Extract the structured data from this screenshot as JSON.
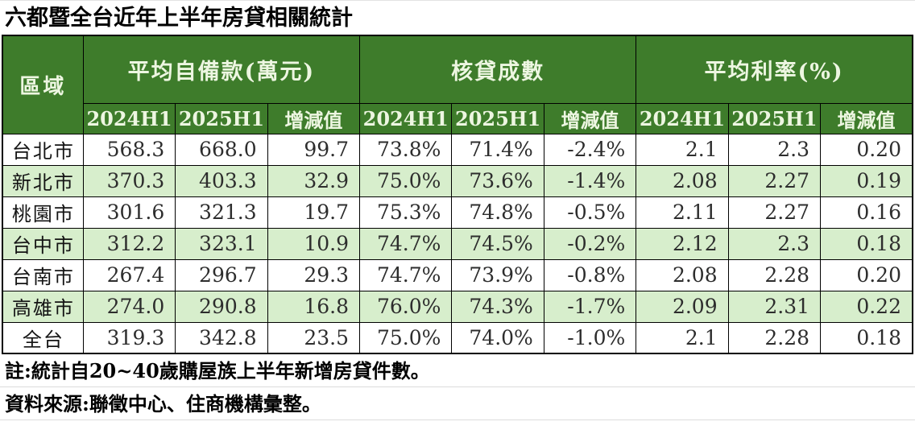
{
  "title": "六都暨全台近年上半年房貸相關統計",
  "table": {
    "region_header": "區域",
    "groups": [
      {
        "label": "平均自備款(萬元)"
      },
      {
        "label": "核貸成數"
      },
      {
        "label": "平均利率(%)"
      }
    ],
    "sub_headers": [
      "2024H1",
      "2025H1",
      "增減值"
    ],
    "rows": [
      {
        "region": "台北市",
        "values": [
          "568.3",
          "668.0",
          "99.7",
          "73.8%",
          "71.4%",
          "-2.4%",
          "2.1",
          "2.3",
          "0.20"
        ]
      },
      {
        "region": "新北市",
        "values": [
          "370.3",
          "403.3",
          "32.9",
          "75.0%",
          "73.6%",
          "-1.4%",
          "2.08",
          "2.27",
          "0.19"
        ]
      },
      {
        "region": "桃園市",
        "values": [
          "301.6",
          "321.3",
          "19.7",
          "75.3%",
          "74.8%",
          "-0.5%",
          "2.11",
          "2.27",
          "0.16"
        ]
      },
      {
        "region": "台中市",
        "values": [
          "312.2",
          "323.1",
          "10.9",
          "74.7%",
          "74.5%",
          "-0.2%",
          "2.12",
          "2.3",
          "0.18"
        ]
      },
      {
        "region": "台南市",
        "values": [
          "267.4",
          "296.7",
          "29.3",
          "74.7%",
          "73.9%",
          "-0.8%",
          "2.08",
          "2.28",
          "0.20"
        ]
      },
      {
        "region": "高雄市",
        "values": [
          "274.0",
          "290.8",
          "16.8",
          "76.0%",
          "74.3%",
          "-1.7%",
          "2.09",
          "2.31",
          "0.22"
        ]
      },
      {
        "region": "全台",
        "values": [
          "319.3",
          "342.8",
          "23.5",
          "75.0%",
          "74.0%",
          "-1.0%",
          "2.1",
          "2.28",
          "0.18"
        ]
      }
    ]
  },
  "notes": [
    "註:統計自20~40歲購屋族上半年新增房貸件數。",
    "資料來源:聯徵中心、住商機構彙整。"
  ],
  "colors": {
    "header_bg": "#3e7c2b",
    "header_text": "#edf6e1",
    "row_alt_bg": "#d7eecc",
    "row_bg": "#ffffff",
    "border": "#000000",
    "note_divider": "#dcdcdc"
  },
  "chart_data": {
    "type": "table",
    "title": "六都暨全台近年上半年房貸相關統計",
    "categories": [
      "台北市",
      "新北市",
      "桃園市",
      "台中市",
      "台南市",
      "高雄市",
      "全台"
    ],
    "series": [
      {
        "name": "平均自備款(萬元) 2024H1",
        "values": [
          568.3,
          370.3,
          301.6,
          312.2,
          267.4,
          274.0,
          319.3
        ]
      },
      {
        "name": "平均自備款(萬元) 2025H1",
        "values": [
          668.0,
          403.3,
          321.3,
          323.1,
          296.7,
          290.8,
          342.8
        ]
      },
      {
        "name": "平均自備款(萬元) 增減值",
        "values": [
          99.7,
          32.9,
          19.7,
          10.9,
          29.3,
          16.8,
          23.5
        ]
      },
      {
        "name": "核貸成數 2024H1 (%)",
        "values": [
          73.8,
          75.0,
          75.3,
          74.7,
          74.7,
          76.0,
          75.0
        ]
      },
      {
        "name": "核貸成數 2025H1 (%)",
        "values": [
          71.4,
          73.6,
          74.8,
          74.5,
          73.9,
          74.3,
          74.0
        ]
      },
      {
        "name": "核貸成數 增減值 (%)",
        "values": [
          -2.4,
          -1.4,
          -0.5,
          -0.2,
          -0.8,
          -1.7,
          -1.0
        ]
      },
      {
        "name": "平均利率 2024H1 (%)",
        "values": [
          2.1,
          2.08,
          2.11,
          2.12,
          2.08,
          2.09,
          2.1
        ]
      },
      {
        "name": "平均利率 2025H1 (%)",
        "values": [
          2.3,
          2.27,
          2.27,
          2.3,
          2.28,
          2.31,
          2.28
        ]
      },
      {
        "name": "平均利率 增減值 (%)",
        "values": [
          0.2,
          0.19,
          0.16,
          0.18,
          0.2,
          0.22,
          0.18
        ]
      }
    ],
    "notes": [
      "註:統計自20~40歲購屋族上半年新增房貸件數。",
      "資料來源:聯徵中心、住商機構彙整。"
    ]
  }
}
